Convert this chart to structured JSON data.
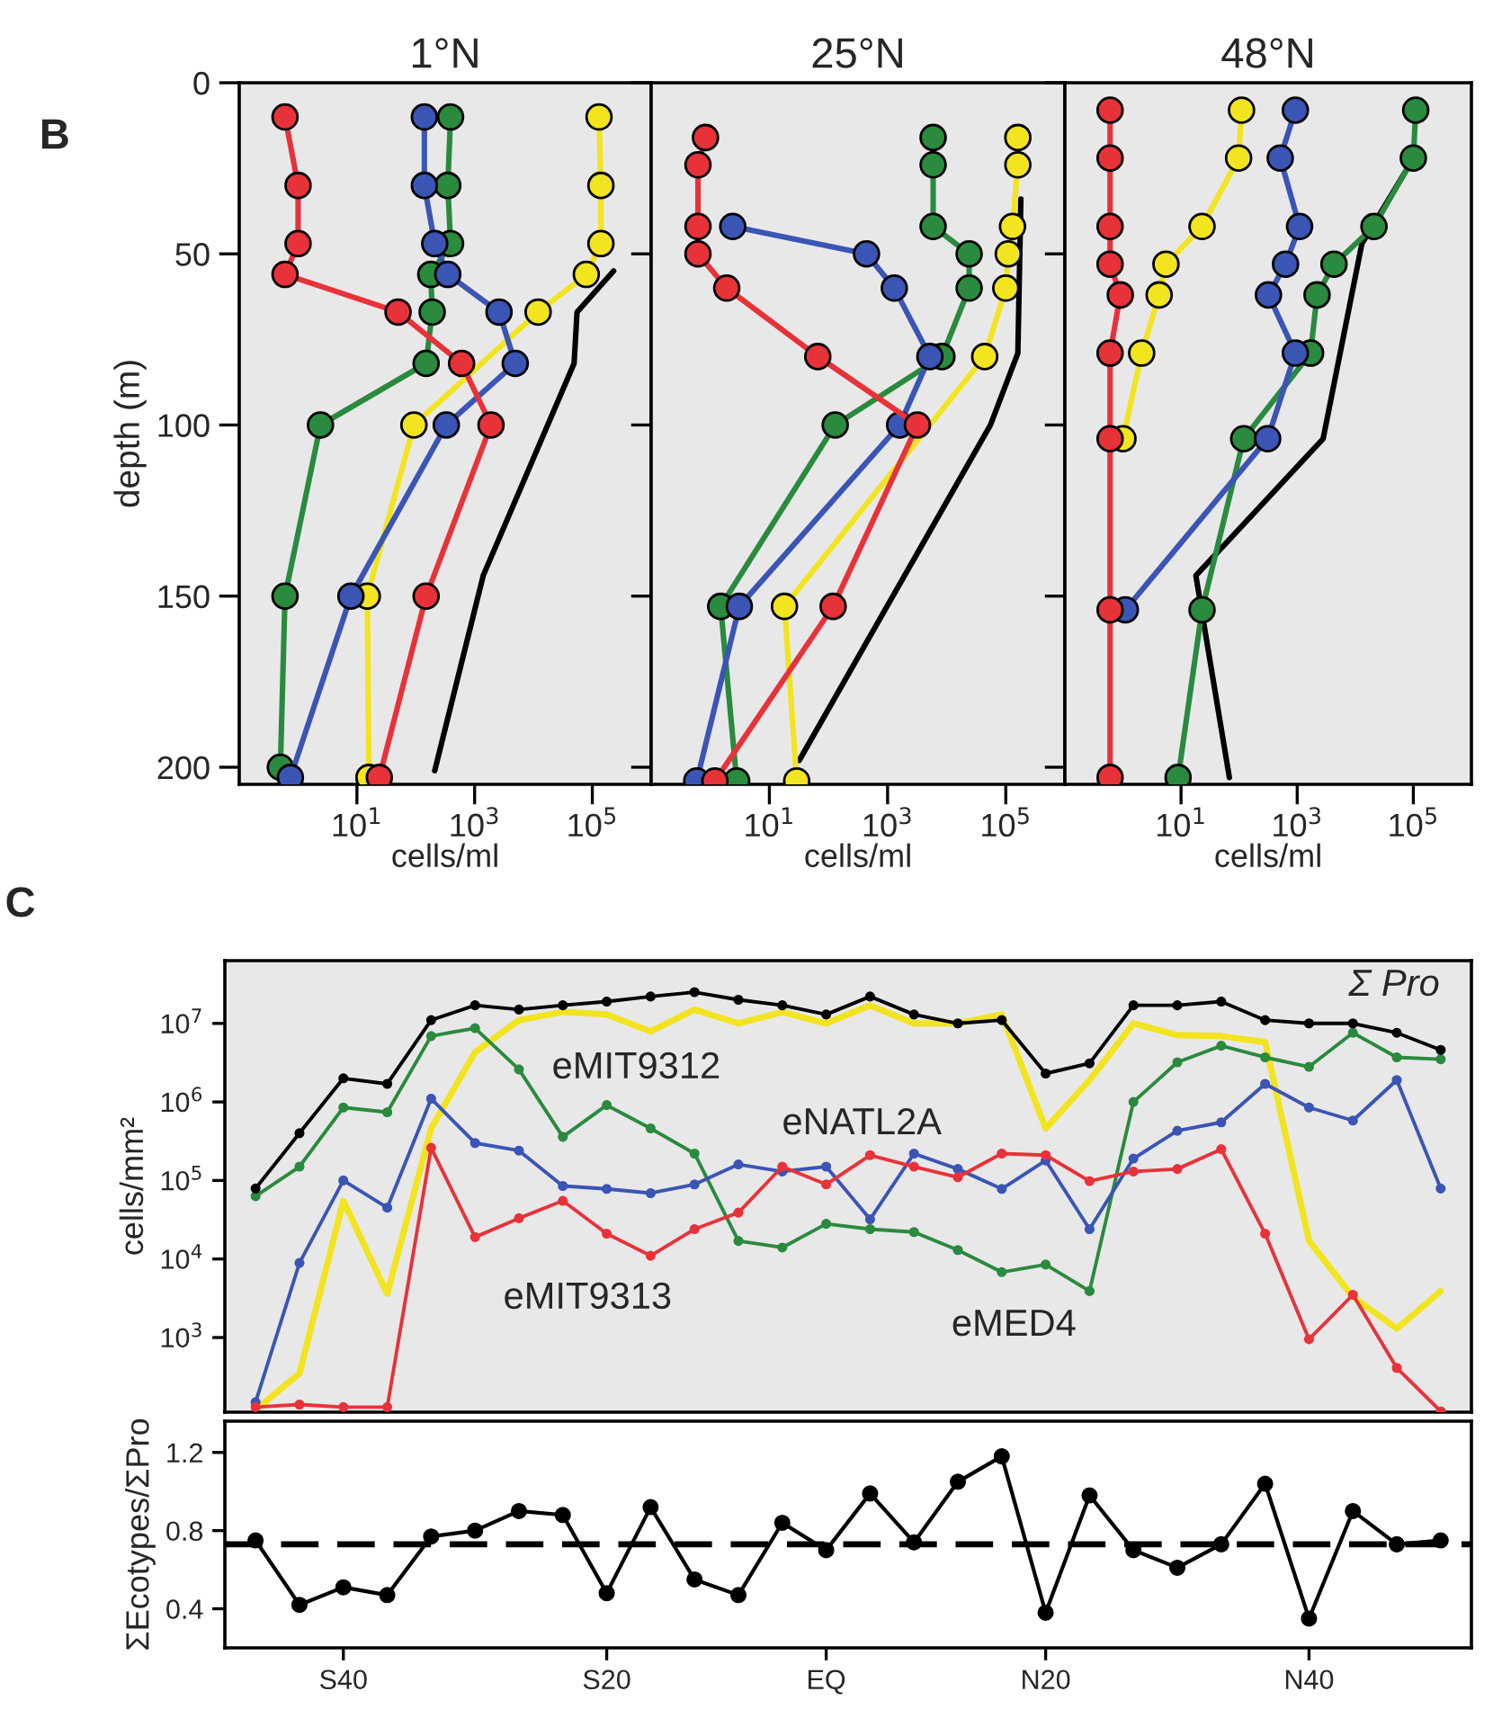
{
  "chart_data": [
    {
      "type": "line",
      "title": "1°N",
      "xlabel": "cells/ml",
      "ylabel": "depth (m)",
      "log": "x",
      "marker": "circle",
      "xlim": [
        0.1,
        1000000
      ],
      "xticks": [
        {
          "value": 10,
          "label": "10$^{1}$"
        },
        {
          "value": 1000,
          "label": "10$^{3}$"
        },
        {
          "value": 100000,
          "label": "10$^{5}$"
        }
      ],
      "ylim": [
        205,
        0
      ],
      "yticks": [
        0,
        50,
        100,
        150,
        200
      ],
      "annotations": [
        "B"
      ],
      "series": [
        {
          "color": "#000000",
          "marker": "none",
          "x": [
            230000,
            55000,
            49000,
            1400,
            210
          ],
          "values": [
            55,
            67,
            82,
            144,
            201
          ]
        },
        {
          "color": "#f2e41e",
          "x": [
            130000,
            140000,
            140000,
            79000,
            12000,
            93,
            15,
            16
          ],
          "values": [
            10,
            30,
            47,
            56,
            67,
            100,
            150,
            203
          ]
        },
        {
          "color": "#2a8a3e",
          "x": [
            390,
            350,
            390,
            180,
            190,
            150,
            2.4,
            0.6,
            0.5
          ],
          "values": [
            10,
            30,
            47,
            56,
            67,
            82,
            100,
            150,
            200
          ]
        },
        {
          "color": "#3a55b4",
          "x": [
            140,
            140,
            210,
            350,
            2600,
            4900,
            330,
            7.9,
            0.74
          ],
          "values": [
            10,
            30,
            47,
            56,
            67,
            82,
            100,
            150,
            203
          ]
        },
        {
          "color": "#e8323a",
          "x": [
            0.6,
            1,
            1,
            0.6,
            50,
            600,
            1900,
            150,
            24
          ],
          "values": [
            10,
            30,
            47,
            56,
            67,
            82,
            100,
            150,
            203
          ]
        }
      ]
    },
    {
      "type": "line",
      "title": "25°N",
      "xlabel": "cells/ml",
      "log": "x",
      "marker": "circle",
      "tick_labels": "x",
      "xlim": [
        0.1,
        1000000
      ],
      "xticks": [
        {
          "value": 10,
          "label": "10$^{1}$"
        },
        {
          "value": 1000,
          "label": "10$^{3}$"
        },
        {
          "value": 100000,
          "label": "10$^{5}$"
        }
      ],
      "ylim": [
        205,
        0
      ],
      "yticks": [
        0,
        50,
        100,
        150,
        200
      ],
      "series": [
        {
          "color": "#000000",
          "marker": "none",
          "x": [
            180000,
            160000,
            55000,
            32
          ],
          "values": [
            34,
            79,
            100,
            198
          ]
        },
        {
          "color": "#f2e41e",
          "x": [
            160000,
            160000,
            130000,
            110000,
            100000,
            44000,
            18,
            29
          ],
          "values": [
            16,
            24,
            42,
            50,
            60,
            80,
            153,
            204
          ]
        },
        {
          "color": "#2a8a3e",
          "x": [
            5900,
            5900,
            5900,
            24000,
            24000,
            8300,
            130,
            1.5,
            2.8
          ],
          "values": [
            16,
            24,
            42,
            50,
            60,
            80,
            100,
            153,
            204
          ]
        },
        {
          "color": "#3a55b4",
          "x": [
            2.4,
            440,
            1300,
            5200,
            1600,
            3.1,
            0.59
          ],
          "values": [
            42,
            50,
            60,
            80,
            100,
            153,
            204
          ]
        },
        {
          "color": "#e8323a",
          "x": [
            0.83,
            0.62,
            0.62,
            0.62,
            1.9,
            66,
            3200,
            120,
            1.2
          ],
          "values": [
            16,
            24,
            42,
            50,
            60,
            80,
            100,
            153,
            204
          ]
        }
      ]
    },
    {
      "type": "line",
      "title": "48°N",
      "xlabel": "cells/ml",
      "log": "x",
      "marker": "circle",
      "tick_labels": "x",
      "xlim": [
        0.1,
        1000000
      ],
      "xticks": [
        {
          "value": 10,
          "label": "10$^{1}$"
        },
        {
          "value": 1000,
          "label": "10$^{3}$"
        },
        {
          "value": 100000,
          "label": "10$^{5}$"
        }
      ],
      "ylim": [
        205,
        0
      ],
      "yticks": [
        0,
        50,
        100,
        150,
        200
      ],
      "series": [
        {
          "color": "#000000",
          "marker": "none",
          "x": [
            79000,
            13000,
            2800,
            18,
            68
          ],
          "values": [
            25,
            47,
            104,
            144,
            203
          ]
        },
        {
          "color": "#f2e41e",
          "x": [
            110,
            98,
            23,
            5.5,
            4.2,
            2.1,
            1.0
          ],
          "values": [
            8,
            22,
            42,
            53,
            62,
            79,
            104
          ]
        },
        {
          "color": "#2a8a3e",
          "x": [
            110000,
            100000,
            21000,
            4300,
            2200,
            1700,
            120,
            23,
            8.9
          ],
          "values": [
            8,
            22,
            42,
            53,
            62,
            79,
            104,
            154,
            203
          ]
        },
        {
          "color": "#3a55b4",
          "x": [
            930,
            510,
            1100,
            630,
            320,
            930,
            310,
            1.1
          ],
          "values": [
            8,
            22,
            42,
            53,
            62,
            79,
            104,
            154
          ]
        },
        {
          "color": "#e8323a",
          "x": [
            0.6,
            0.6,
            0.6,
            0.6,
            0.9,
            0.6,
            0.6,
            0.6,
            0.6
          ],
          "values": [
            8,
            22,
            42,
            53,
            62,
            79,
            104,
            154,
            203
          ]
        }
      ]
    },
    {
      "type": "line",
      "ylabel": "cells/mm²",
      "log": true,
      "marker": "circle",
      "tick_labels": "y",
      "categories": [
        null,
        null,
        null,
        null,
        null,
        null,
        null,
        null,
        null,
        null,
        null,
        null,
        null,
        null,
        null,
        null,
        null,
        null,
        null,
        null,
        null,
        null,
        null,
        null,
        null,
        null,
        null,
        null
      ],
      "ylim": [
        112,
        63000000
      ],
      "yticks": [
        {
          "value": 1000,
          "label": "10$^{3}$"
        },
        {
          "value": 10000,
          "label": "10$^{4}$"
        },
        {
          "value": 100000,
          "label": "10$^{5}$"
        },
        {
          "value": 1000000,
          "label": "10$^{6}$"
        },
        {
          "value": 10000000,
          "label": "10$^{7}$"
        }
      ],
      "annotations": [
        "C",
        "Σ Pro",
        "eMIT9312",
        "eNATL2A",
        "eMIT9313",
        "eMED4"
      ],
      "series": [
        {
          "color": "#f2e41e",
          "marker": "none",
          "values": [
            120,
            350,
            55000,
            3600,
            460000,
            4300000,
            11000000,
            14000000,
            13000000,
            7900000,
            15000000,
            10000000,
            14000000,
            10000000,
            17000000,
            10000000,
            10000000,
            13000000,
            460000,
            1900000,
            10000000,
            7100000,
            6900000,
            5800000,
            17000,
            3300,
            1300,
            3900
          ]
        },
        {
          "color": "#2a8a3e",
          "values": [
            63000,
            150000,
            850000,
            740000,
            6900000,
            8700000,
            2600000,
            360000,
            910000,
            460000,
            220000,
            17000,
            14000,
            28000,
            24000,
            22000,
            13000,
            6800,
            8500,
            3900,
            1000000,
            3200000,
            5200000,
            3700000,
            2800000,
            7600000,
            3700000,
            3500000
          ]
        },
        {
          "color": "#3a55b4",
          "values": [
            150,
            8900,
            100000,
            45000,
            1100000,
            300000,
            240000,
            85000,
            78000,
            69000,
            89000,
            160000,
            130000,
            150000,
            32000,
            220000,
            140000,
            78000,
            180000,
            24000,
            190000,
            430000,
            550000,
            1700000,
            850000,
            580000,
            1900000,
            79000
          ]
        },
        {
          "color": "#e8323a",
          "values": [
            130,
            140,
            130,
            130,
            260000,
            19000,
            33000,
            55000,
            21000,
            11000,
            24000,
            39000,
            150000,
            89000,
            210000,
            150000,
            110000,
            220000,
            210000,
            98000,
            130000,
            140000,
            250000,
            21000,
            950,
            3500,
            410,
            115
          ]
        },
        {
          "color": "#000000",
          "values": [
            79000,
            400000,
            2000000,
            1700000,
            11000000,
            17000000,
            15000000,
            17000000,
            19000000,
            22000000,
            25000000,
            20000000,
            17000000,
            13000000,
            22000000,
            13000000,
            10000000,
            11000000,
            2300000,
            3100000,
            17000000,
            17000000,
            19000000,
            11000000,
            10000000,
            10000000,
            7600000,
            4600000
          ]
        }
      ]
    },
    {
      "type": "line",
      "ylabel": "ΣEcotypes/ΣPro",
      "marker": "circle",
      "categories": [
        null,
        null,
        "S40",
        null,
        null,
        null,
        null,
        null,
        "S20",
        null,
        null,
        null,
        null,
        "EQ",
        null,
        null,
        null,
        null,
        "N20",
        null,
        null,
        null,
        null,
        null,
        "N40",
        null,
        null,
        null
      ],
      "ylim": [
        0.2,
        1.36
      ],
      "yticks": [
        0.4,
        0.8,
        1.2
      ],
      "ref_lines": [
        {
          "axis": "y",
          "value": 0.73,
          "line_style": "dashed",
          "color": "#000000"
        }
      ],
      "series": [
        {
          "color": "#000000",
          "values": [
            0.75,
            0.42,
            0.51,
            0.47,
            0.77,
            0.8,
            0.9,
            0.88,
            0.48,
            0.92,
            0.55,
            0.47,
            0.84,
            0.7,
            0.99,
            0.74,
            1.05,
            1.18,
            0.38,
            0.98,
            0.7,
            0.61,
            0.73,
            1.04,
            0.35,
            0.9,
            0.73,
            0.75
          ]
        }
      ]
    }
  ]
}
